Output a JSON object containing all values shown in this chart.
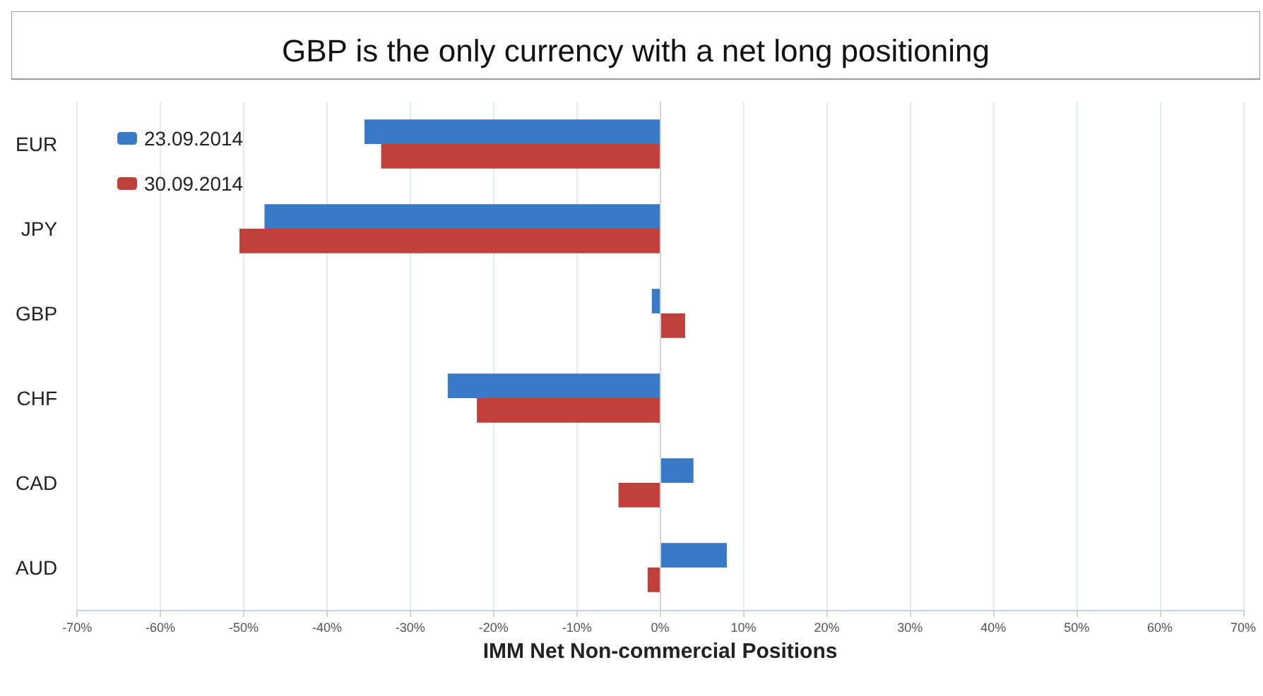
{
  "chart_data": {
    "type": "bar",
    "orientation": "horizontal",
    "title": "GBP is the only currency with a net long positioning",
    "xlabel": "IMM Net Non-commercial Positions",
    "categories": [
      "EUR",
      "JPY",
      "GBP",
      "CHF",
      "CAD",
      "AUD"
    ],
    "series": [
      {
        "name": "23.09.2014",
        "color": "#3a78c8",
        "values": [
          -35.5,
          -47.5,
          -1,
          -25.5,
          4,
          8
        ]
      },
      {
        "name": "30.09.2014",
        "color": "#c0403c",
        "values": [
          -33.5,
          -50.5,
          3,
          -22,
          -5,
          -1.5
        ]
      }
    ],
    "xlim": [
      -70,
      70
    ],
    "xticks": [
      {
        "value": -70,
        "label": "-70%"
      },
      {
        "value": -60,
        "label": "-60%"
      },
      {
        "value": -50,
        "label": "-50%"
      },
      {
        "value": -40,
        "label": "-40%"
      },
      {
        "value": -30,
        "label": "-30%"
      },
      {
        "value": -20,
        "label": "-20%"
      },
      {
        "value": -10,
        "label": "-10%"
      },
      {
        "value": 0,
        "label": "0%"
      },
      {
        "value": 10,
        "label": "10%"
      },
      {
        "value": 20,
        "label": "20%"
      },
      {
        "value": 30,
        "label": "30%"
      },
      {
        "value": 40,
        "label": "40%"
      },
      {
        "value": 50,
        "label": "50%"
      },
      {
        "value": 60,
        "label": "60%"
      },
      {
        "value": 70,
        "label": "70%"
      }
    ],
    "grid": "x",
    "legend": "top left"
  }
}
